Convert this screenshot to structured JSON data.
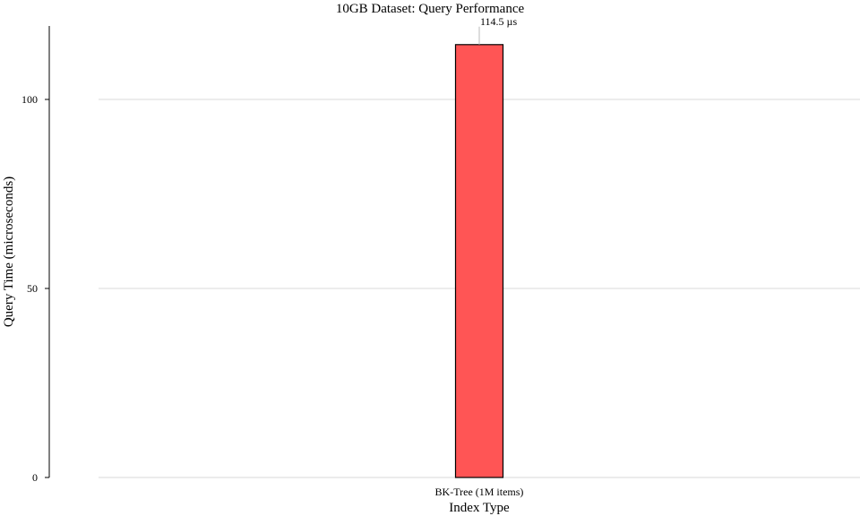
{
  "chart_data": {
    "type": "bar",
    "title": "10GB Dataset: Query Performance",
    "xlabel": "Index Type",
    "ylabel": "Query Time (microseconds)",
    "categories": [
      "BK-Tree (1M items)"
    ],
    "values": [
      114.5
    ],
    "data_labels": [
      "114.5 µs"
    ],
    "ylim": [
      0,
      120
    ],
    "yticks": [
      0,
      50,
      100
    ],
    "ytick_labels": [
      "0",
      "50",
      "100"
    ],
    "grid": "horizontal",
    "legend": "none",
    "colors": {
      "bar": "#ff5555",
      "bar_edge": "#000000",
      "grid": "#d9d9d9",
      "axis": "#000000",
      "leader": "#bbbbbb"
    }
  }
}
